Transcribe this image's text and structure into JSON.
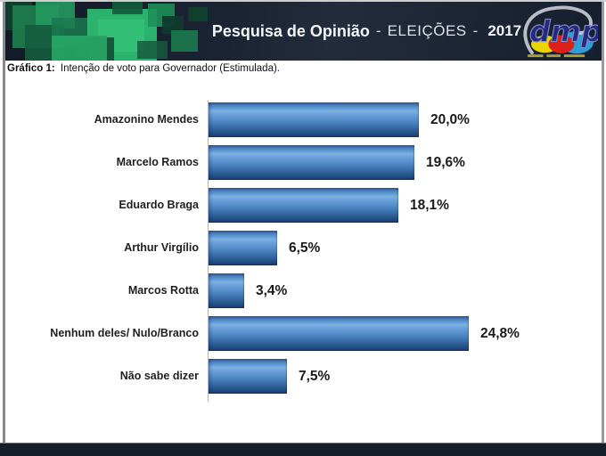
{
  "colors": {
    "header_bg": "#1a2230",
    "footer_bg": "#151d29",
    "accent_green": "#2bb36d",
    "bar_top": "#2e5d97",
    "bar_light": "#7ab0e4",
    "bar_mid": "#477fbf",
    "bar_dark": "#1c4478",
    "logo_blue": "#252a7d"
  },
  "header": {
    "title": {
      "main": "Pesquisa de Opinião",
      "sep1": "-",
      "section": "ELEIÇÕES",
      "sep2": "-",
      "year": "2017"
    },
    "logo_text": "dmp"
  },
  "caption": {
    "label": "Gráfico 1:",
    "text": "Intenção de voto para Governador (Estimulada)."
  },
  "chart_data": {
    "type": "bar",
    "orientation": "horizontal",
    "title": "Intenção de voto para Governador (Estimulada)",
    "categories": [
      "Amazonino Mendes",
      "Marcelo Ramos",
      "Eduardo Braga",
      "Arthur Virgílio",
      "Marcos Rotta",
      "Nenhum deles/ Nulo/Branco",
      "Não sabe dizer"
    ],
    "values": [
      20.0,
      19.6,
      18.1,
      6.5,
      3.4,
      24.8,
      7.5
    ],
    "value_labels": [
      "20,0%",
      "19,6%",
      "18,1%",
      "6,5%",
      "3,4%",
      "24,8%",
      "7,5%"
    ],
    "unit": "%",
    "xlim": [
      0,
      25
    ],
    "grid": false,
    "legend": false,
    "data_labels": "outside-end"
  }
}
